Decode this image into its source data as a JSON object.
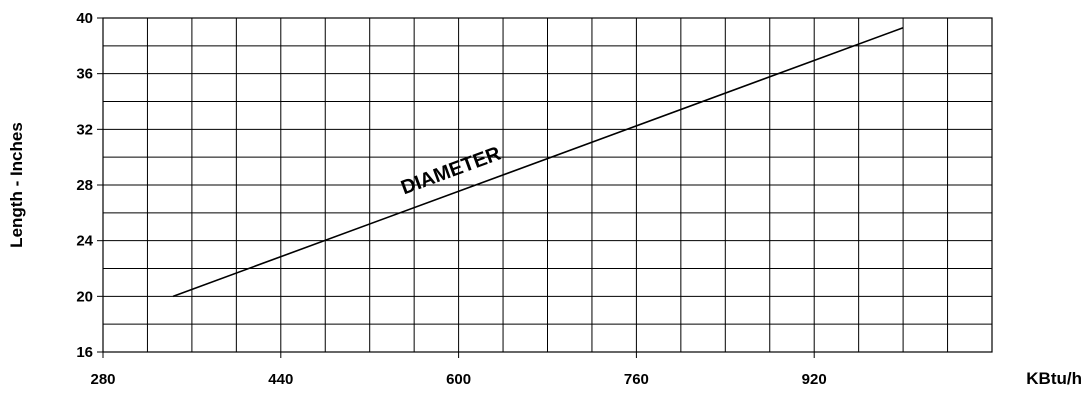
{
  "chart_data": {
    "type": "line",
    "title": "",
    "xlabel": "KBtu/h",
    "ylabel": "Length - Inches",
    "xlim": [
      280,
      1080
    ],
    "ylim": [
      16,
      40
    ],
    "x_ticks": [
      280,
      440,
      600,
      760,
      920
    ],
    "y_ticks": [
      16,
      20,
      24,
      28,
      32,
      36,
      40
    ],
    "x_grid_step": 40,
    "y_grid_step": 2,
    "grid": true,
    "series": [
      {
        "name": "DIAMETER",
        "x": [
          343,
          1000
        ],
        "y": [
          20,
          39.3
        ]
      }
    ],
    "annotations": [
      {
        "text": "DIAMETER",
        "x": 595,
        "y": 28.6
      }
    ]
  }
}
